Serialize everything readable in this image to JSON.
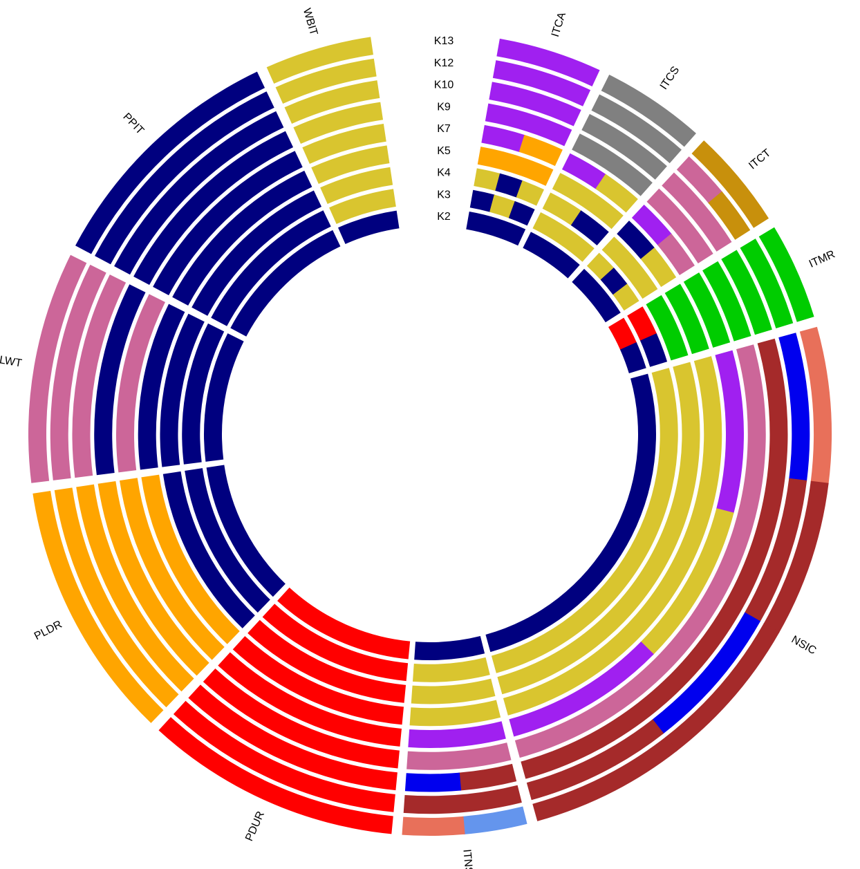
{
  "chart_data": {
    "type": "circular-structure",
    "k_labels": [
      "K2",
      "K3",
      "K4",
      "K5",
      "K7",
      "K9",
      "K10",
      "K12",
      "K13"
    ],
    "populations": [
      {
        "label": "ITCA",
        "colors": [
          [
            "#00007f"
          ],
          [
            "#00007f",
            "#d9c52f",
            "#00007f"
          ],
          [
            "#d9c52f",
            "#00007f",
            "#d9c52f"
          ],
          [
            "#ffa500"
          ],
          [
            "#a020f0",
            "#ffa500"
          ],
          [
            "#a020f0"
          ],
          [
            "#a020f0"
          ],
          [
            "#a020f0"
          ],
          [
            "#a020f0"
          ]
        ]
      },
      {
        "label": "ITCS",
        "colors": [
          [
            "#00007f"
          ],
          [
            "#d9c52f"
          ],
          [
            "#d9c52f",
            "#00007f"
          ],
          [
            "#d9c52f"
          ],
          [
            "#a020f0",
            "#d9c52f"
          ],
          [
            "#808080"
          ],
          [
            "#808080"
          ],
          [
            "#808080"
          ],
          [
            "#808080"
          ]
        ]
      },
      {
        "label": "ITCT",
        "colors": [
          [
            "#00007f"
          ],
          [
            "#d9c52f",
            "#00007f",
            "#d9c52f"
          ],
          [
            "#d9c52f"
          ],
          [
            "#00007f",
            "#d9c52f"
          ],
          [
            "#a020f0",
            "#cc6699"
          ],
          [
            "#cc6699"
          ],
          [
            "#cc6699"
          ],
          [
            "#cc6699",
            "#c8900c"
          ],
          [
            "#c8900c"
          ]
        ]
      },
      {
        "label": "ITMR",
        "colors": [
          [
            "#ff0000",
            "#00007f"
          ],
          [
            "#ff0000",
            "#00007f"
          ],
          [
            "#00cc00"
          ],
          [
            "#00cc00"
          ],
          [
            "#00cc00"
          ],
          [
            "#00cc00"
          ],
          [
            "#00cc00"
          ],
          [
            "#00cc00"
          ],
          [
            "#00cc00"
          ]
        ]
      },
      {
        "label": "NSIC",
        "colors": [
          [
            "#00007f"
          ],
          [
            "#d9c52f"
          ],
          [
            "#d9c52f"
          ],
          [
            "#d9c52f"
          ],
          [
            "#a020f0",
            "#d9c52f",
            "#a020f0"
          ],
          [
            "#cc6699"
          ],
          [
            "#a52a2a"
          ],
          [
            "#0000ee",
            "#a52a2a",
            "#0000ee",
            "#a52a2a"
          ],
          [
            "#e8705a",
            "#a52a2a",
            "#a52a2a",
            "#a52a2a"
          ]
        ]
      },
      {
        "label": "ITNS",
        "colors": [
          [
            "#00007f"
          ],
          [
            "#d9c52f"
          ],
          [
            "#d9c52f"
          ],
          [
            "#d9c52f"
          ],
          [
            "#a020f0"
          ],
          [
            "#cc6699"
          ],
          [
            "#a52a2a",
            "#0000ee"
          ],
          [
            "#a52a2a"
          ],
          [
            "#6495ed",
            "#e8705a"
          ]
        ]
      },
      {
        "label": "PDUR",
        "colors": [
          [
            "#ff0000"
          ],
          [
            "#ff0000"
          ],
          [
            "#ff0000"
          ],
          [
            "#ff0000"
          ],
          [
            "#ff0000"
          ],
          [
            "#ff0000"
          ],
          [
            "#ff0000"
          ],
          [
            "#ff0000"
          ],
          [
            "#ff0000"
          ]
        ]
      },
      {
        "label": "PLDR",
        "colors": [
          [
            "#00007f"
          ],
          [
            "#00007f"
          ],
          [
            "#00007f"
          ],
          [
            "#ffa500"
          ],
          [
            "#ffa500"
          ],
          [
            "#ffa500"
          ],
          [
            "#ffa500"
          ],
          [
            "#ffa500"
          ],
          [
            "#ffa500"
          ]
        ]
      },
      {
        "label": "PLWT",
        "colors": [
          [
            "#00007f"
          ],
          [
            "#00007f"
          ],
          [
            "#00007f"
          ],
          [
            "#00007f"
          ],
          [
            "#cc6699"
          ],
          [
            "#00007f"
          ],
          [
            "#cc6699"
          ],
          [
            "#cc6699"
          ],
          [
            "#cc6699"
          ]
        ]
      },
      {
        "label": "PPIT",
        "colors": [
          [
            "#00007f"
          ],
          [
            "#00007f"
          ],
          [
            "#00007f"
          ],
          [
            "#00007f"
          ],
          [
            "#00007f"
          ],
          [
            "#00007f"
          ],
          [
            "#00007f"
          ],
          [
            "#00007f"
          ],
          [
            "#00007f"
          ]
        ]
      },
      {
        "label": "WBIT",
        "colors": [
          [
            "#00007f"
          ],
          [
            "#d9c52f"
          ],
          [
            "#d9c52f"
          ],
          [
            "#d9c52f"
          ],
          [
            "#d9c52f"
          ],
          [
            "#d9c52f"
          ],
          [
            "#d9c52f"
          ],
          [
            "#d9c52f"
          ],
          [
            "#d9c52f"
          ]
        ]
      }
    ]
  }
}
